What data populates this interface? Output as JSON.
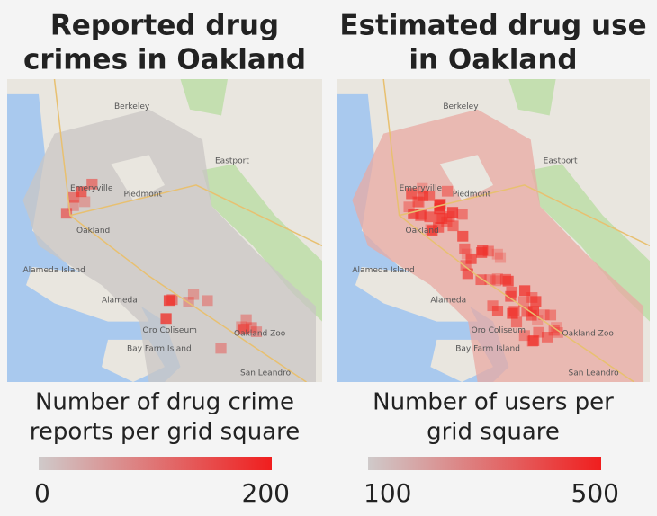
{
  "panels": [
    {
      "title_lines": [
        "Reported drug",
        "crimes in Oakland"
      ],
      "legend_lines": [
        "Number of drug crime",
        "reports per grid square"
      ],
      "scale": {
        "min": 0,
        "max": 200
      }
    },
    {
      "title_lines": [
        "Estimated drug use",
        "in Oakland"
      ],
      "legend_lines": [
        "Number of users per",
        "grid square"
      ],
      "scale": {
        "min": 100,
        "max": 500
      }
    }
  ],
  "map_labels": [
    "Berkeley",
    "Emeryville",
    "Piedmont",
    "Oakland",
    "Eastport",
    "Alameda Island",
    "Alameda",
    "Oro Coliseum",
    "Bay Farm Island",
    "San Leandro",
    "Oakland Zoo"
  ]
}
